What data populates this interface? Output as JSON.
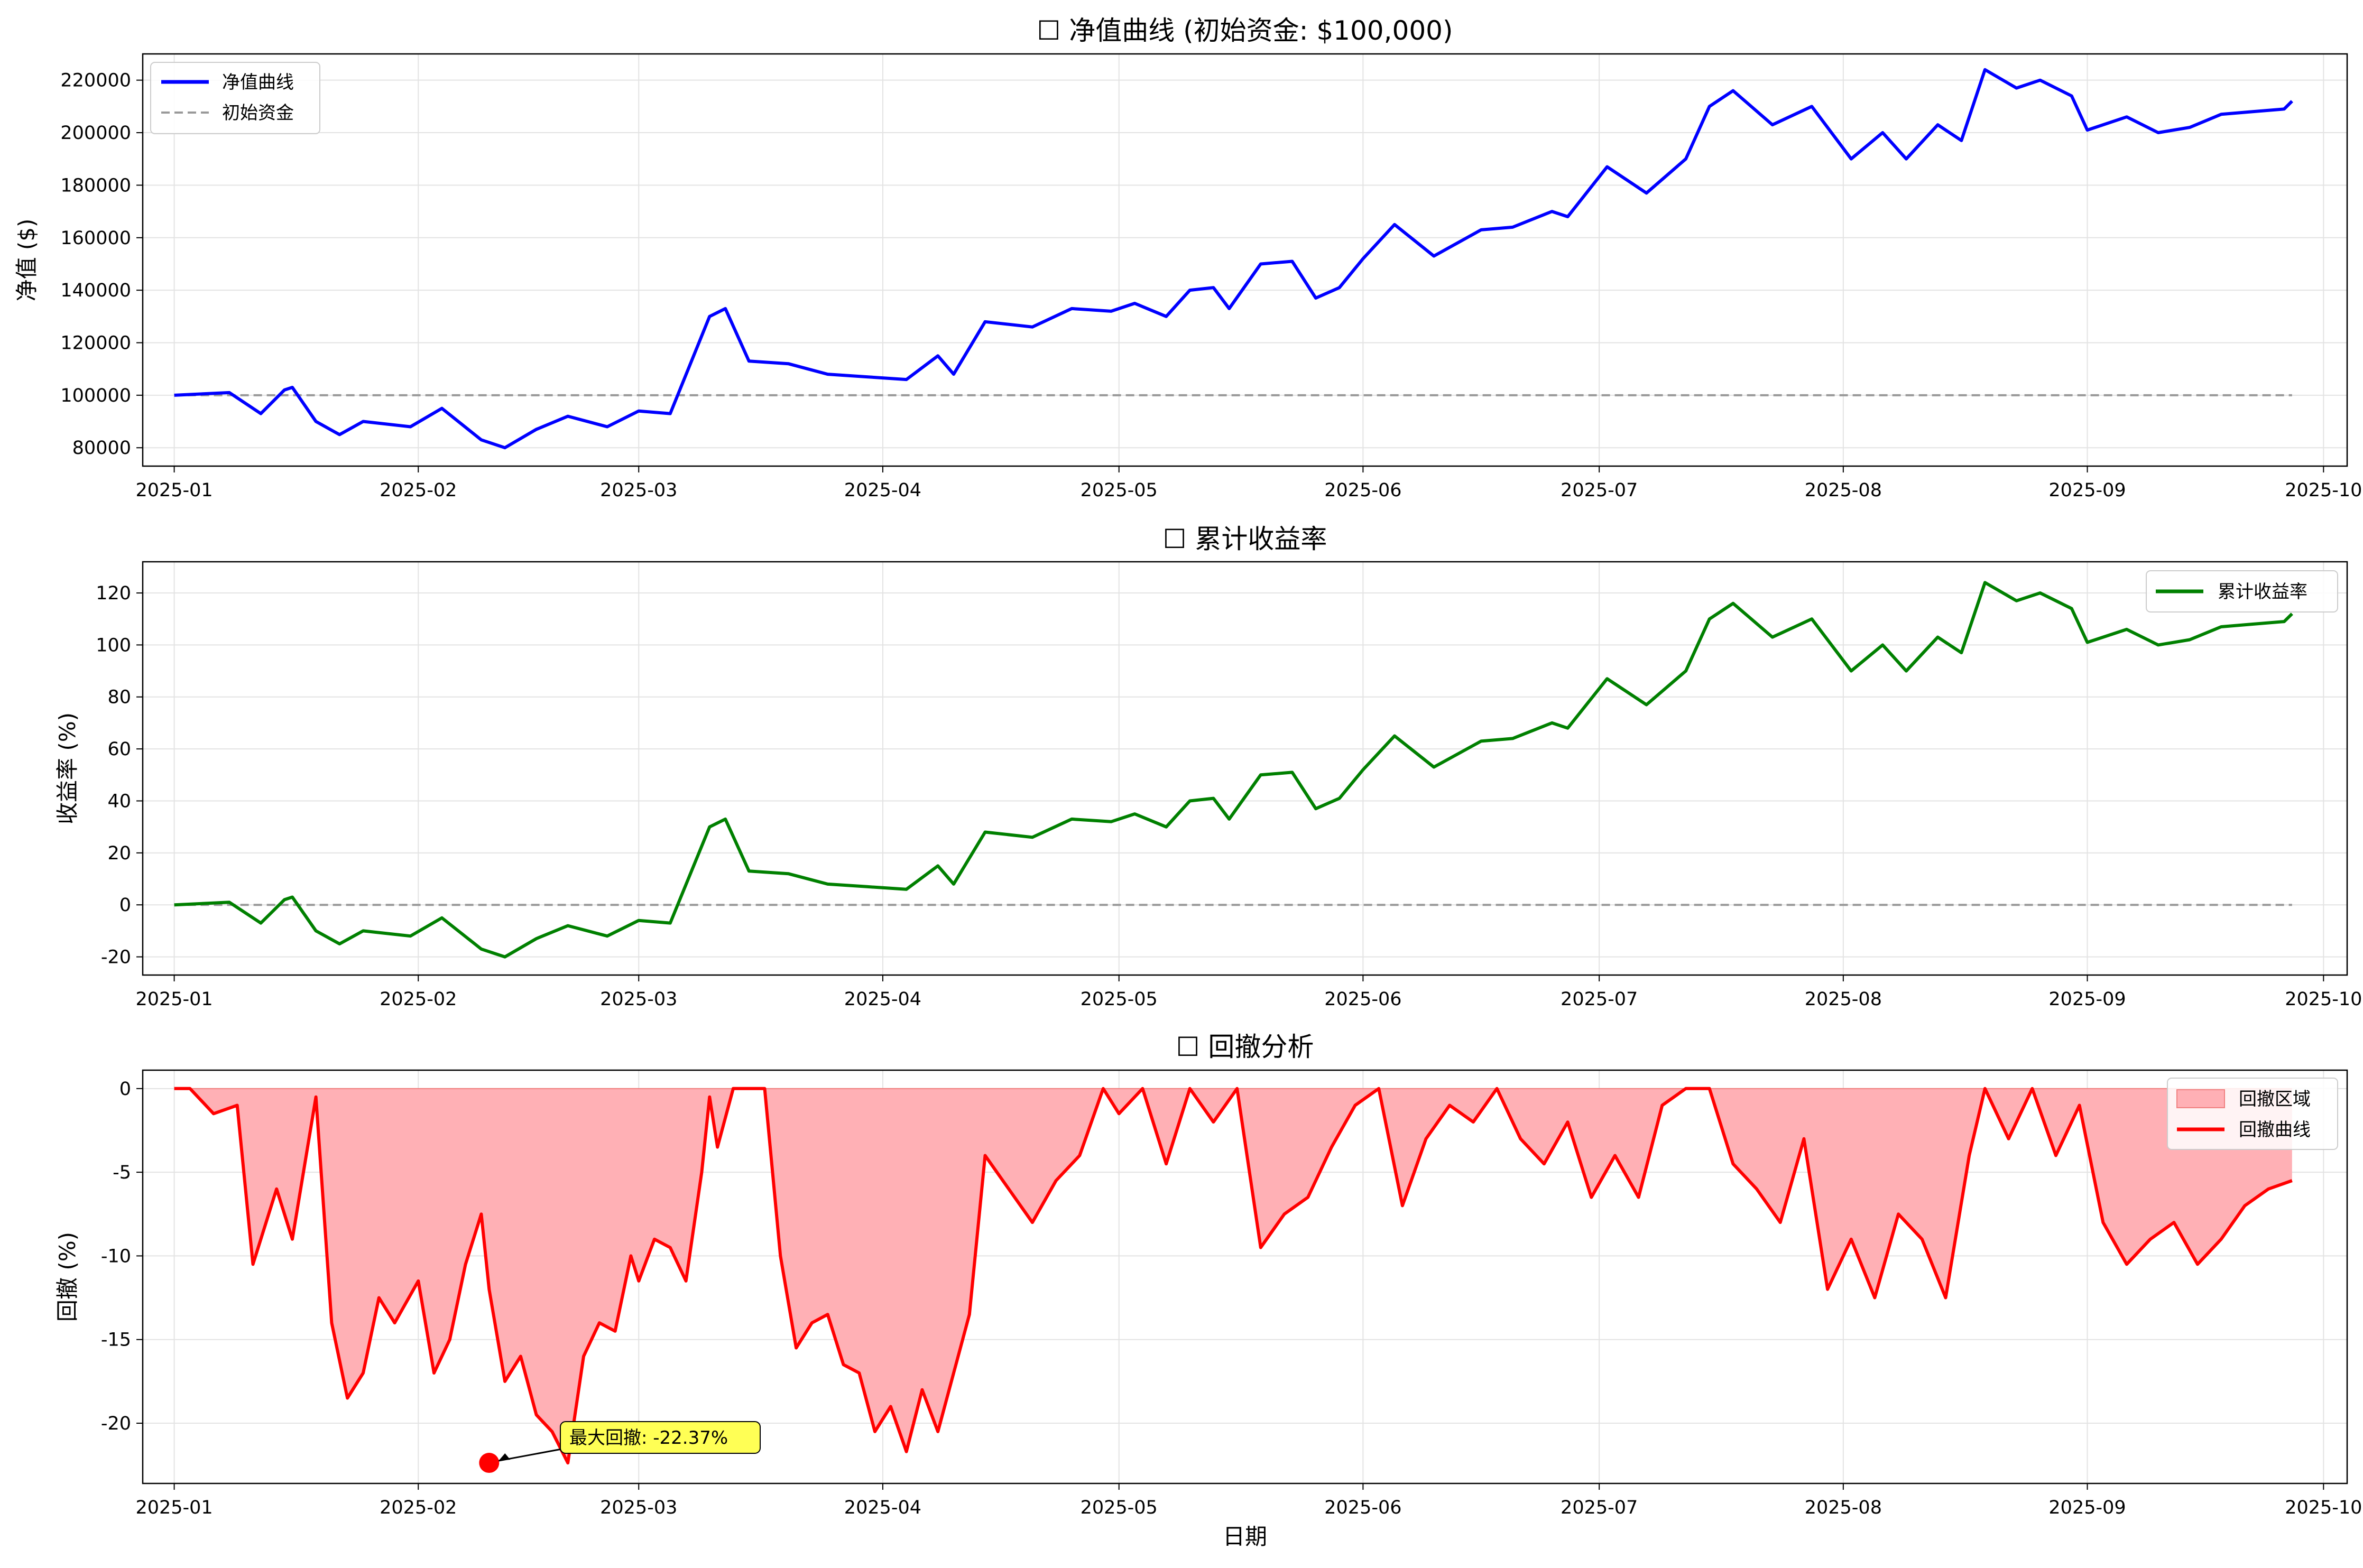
{
  "figure": {
    "xticks": [
      "2025-01",
      "2025-02",
      "2025-03",
      "2025-04",
      "2025-05",
      "2025-06",
      "2025-07",
      "2025-08",
      "2025-09",
      "2025-10"
    ],
    "xlabel": "日期"
  },
  "panels": {
    "equity": {
      "title": "☐ 净值曲线 (初始资金: $100,000)",
      "ylabel": "净值 ($)",
      "yticks": [
        "80000",
        "100000",
        "120000",
        "140000",
        "160000",
        "180000",
        "200000",
        "220000"
      ],
      "legend": [
        "净值曲线",
        "初始资金"
      ]
    },
    "returns": {
      "title": "☐ 累计收益率",
      "ylabel": "收益率 (%)",
      "yticks": [
        "-20",
        "0",
        "20",
        "40",
        "60",
        "80",
        "100",
        "120"
      ],
      "legend": [
        "累计收益率"
      ]
    },
    "drawdown": {
      "title": "☐ 回撤分析",
      "ylabel": "回撤 (%)",
      "yticks": [
        "-20",
        "-15",
        "-10",
        "-5",
        "0"
      ],
      "legend": [
        "回撤区域",
        "回撤曲线"
      ],
      "annotation": "最大回撤: -22.37%"
    }
  },
  "colors": {
    "equity": "#0000ff",
    "returns": "#008000",
    "drawdown": "#ff0000",
    "drawdown_fill": "#ffb0b5",
    "baseline": "#999999",
    "annotation_box": "#ffff55"
  },
  "chart_data": [
    {
      "type": "line",
      "title": "☐ 净值曲线 (初始资金: $100,000)",
      "xlabel": "",
      "ylabel": "净值 ($)",
      "xlim": [
        "2024-12-28",
        "2025-10-04"
      ],
      "ylim": [
        73000,
        230000
      ],
      "grid": true,
      "legend_position": "upper left",
      "series": [
        {
          "name": "净值曲线",
          "x": [
            "2025-01-01",
            "2025-01-08",
            "2025-01-12",
            "2025-01-15",
            "2025-01-16",
            "2025-01-19",
            "2025-01-22",
            "2025-01-25",
            "2025-01-31",
            "2025-02-04",
            "2025-02-09",
            "2025-02-12",
            "2025-02-16",
            "2025-02-20",
            "2025-02-25",
            "2025-03-01",
            "2025-03-05",
            "2025-03-10",
            "2025-03-12",
            "2025-03-15",
            "2025-03-20",
            "2025-03-25",
            "2025-03-30",
            "2025-04-04",
            "2025-04-08",
            "2025-04-10",
            "2025-04-14",
            "2025-04-20",
            "2025-04-25",
            "2025-04-30",
            "2025-05-03",
            "2025-05-07",
            "2025-05-10",
            "2025-05-13",
            "2025-05-15",
            "2025-05-19",
            "2025-05-23",
            "2025-05-26",
            "2025-05-29",
            "2025-06-01",
            "2025-06-05",
            "2025-06-10",
            "2025-06-16",
            "2025-06-20",
            "2025-06-25",
            "2025-06-27",
            "2025-07-02",
            "2025-07-07",
            "2025-07-12",
            "2025-07-15",
            "2025-07-18",
            "2025-07-23",
            "2025-07-28",
            "2025-08-02",
            "2025-08-06",
            "2025-08-09",
            "2025-08-13",
            "2025-08-16",
            "2025-08-19",
            "2025-08-23",
            "2025-08-26",
            "2025-08-30",
            "2025-09-01",
            "2025-09-06",
            "2025-09-10",
            "2025-09-14",
            "2025-09-18",
            "2025-09-22",
            "2025-09-26",
            "2025-09-27"
          ],
          "values": [
            100000,
            101000,
            93000,
            102000,
            103000,
            90000,
            85000,
            90000,
            88000,
            95000,
            83000,
            80000,
            87000,
            92000,
            88000,
            94000,
            93000,
            130000,
            133000,
            113000,
            112000,
            108000,
            107000,
            106000,
            115000,
            108000,
            128000,
            126000,
            133000,
            132000,
            135000,
            130000,
            140000,
            141000,
            133000,
            150000,
            151000,
            137000,
            141000,
            152000,
            165000,
            153000,
            163000,
            164000,
            170000,
            168000,
            187000,
            177000,
            190000,
            210000,
            216000,
            203000,
            210000,
            190000,
            200000,
            190000,
            203000,
            197000,
            224000,
            217000,
            220000,
            214000,
            201000,
            206000,
            200000,
            202000,
            207000,
            208000,
            209000,
            212000
          ]
        },
        {
          "name": "初始资金",
          "x": [
            "2025-01-01",
            "2025-09-27"
          ],
          "values": [
            100000,
            100000
          ]
        }
      ]
    },
    {
      "type": "line",
      "title": "☐ 累计收益率",
      "xlabel": "",
      "ylabel": "收益率 (%)",
      "xlim": [
        "2024-12-28",
        "2025-10-04"
      ],
      "ylim": [
        -27,
        132
      ],
      "grid": true,
      "legend_position": "upper right",
      "series": [
        {
          "name": "累计收益率",
          "x": [
            "2025-01-01",
            "2025-01-08",
            "2025-01-12",
            "2025-01-15",
            "2025-01-16",
            "2025-01-19",
            "2025-01-22",
            "2025-01-25",
            "2025-01-31",
            "2025-02-04",
            "2025-02-09",
            "2025-02-12",
            "2025-02-16",
            "2025-02-20",
            "2025-02-25",
            "2025-03-01",
            "2025-03-05",
            "2025-03-10",
            "2025-03-12",
            "2025-03-15",
            "2025-03-20",
            "2025-03-25",
            "2025-03-30",
            "2025-04-04",
            "2025-04-08",
            "2025-04-10",
            "2025-04-14",
            "2025-04-20",
            "2025-04-25",
            "2025-04-30",
            "2025-05-03",
            "2025-05-07",
            "2025-05-10",
            "2025-05-13",
            "2025-05-15",
            "2025-05-19",
            "2025-05-23",
            "2025-05-26",
            "2025-05-29",
            "2025-06-01",
            "2025-06-05",
            "2025-06-10",
            "2025-06-16",
            "2025-06-20",
            "2025-06-25",
            "2025-06-27",
            "2025-07-02",
            "2025-07-07",
            "2025-07-12",
            "2025-07-15",
            "2025-07-18",
            "2025-07-23",
            "2025-07-28",
            "2025-08-02",
            "2025-08-06",
            "2025-08-09",
            "2025-08-13",
            "2025-08-16",
            "2025-08-19",
            "2025-08-23",
            "2025-08-26",
            "2025-08-30",
            "2025-09-01",
            "2025-09-06",
            "2025-09-10",
            "2025-09-14",
            "2025-09-18",
            "2025-09-22",
            "2025-09-26",
            "2025-09-27"
          ],
          "values": [
            0,
            1,
            -7,
            2,
            3,
            -10,
            -15,
            -10,
            -12,
            -5,
            -17,
            -20,
            -13,
            -8,
            -12,
            -6,
            -7,
            30,
            33,
            13,
            12,
            8,
            7,
            6,
            15,
            8,
            28,
            26,
            33,
            32,
            35,
            30,
            40,
            41,
            33,
            50,
            51,
            37,
            41,
            52,
            65,
            53,
            63,
            64,
            70,
            68,
            87,
            77,
            90,
            110,
            116,
            103,
            110,
            90,
            100,
            90,
            103,
            97,
            124,
            117,
            120,
            114,
            101,
            106,
            100,
            102,
            107,
            108,
            109,
            112
          ]
        },
        {
          "name": "",
          "x": [
            "2025-01-01",
            "2025-09-27"
          ],
          "values": [
            0,
            0
          ]
        }
      ]
    },
    {
      "type": "area",
      "title": "☐ 回撤分析",
      "xlabel": "日期",
      "ylabel": "回撤 (%)",
      "xlim": [
        "2024-12-28",
        "2025-10-04"
      ],
      "ylim": [
        -23.6,
        1.1
      ],
      "grid": true,
      "legend_position": "upper right",
      "series": [
        {
          "name": "回撤曲线",
          "x": [
            "2025-01-01",
            "2025-01-03",
            "2025-01-06",
            "2025-01-09",
            "2025-01-11",
            "2025-01-14",
            "2025-01-16",
            "2025-01-19",
            "2025-01-21",
            "2025-01-23",
            "2025-01-25",
            "2025-01-27",
            "2025-01-29",
            "2025-02-01",
            "2025-02-03",
            "2025-02-05",
            "2025-02-07",
            "2025-02-09",
            "2025-02-10",
            "2025-02-12",
            "2025-02-14",
            "2025-02-16",
            "2025-02-18",
            "2025-02-20",
            "2025-02-22",
            "2025-02-24",
            "2025-02-26",
            "2025-02-28",
            "2025-03-01",
            "2025-03-03",
            "2025-03-05",
            "2025-03-07",
            "2025-03-09",
            "2025-03-10",
            "2025-03-11",
            "2025-03-13",
            "2025-03-15",
            "2025-03-17",
            "2025-03-19",
            "2025-03-21",
            "2025-03-23",
            "2025-03-25",
            "2025-03-27",
            "2025-03-29",
            "2025-03-31",
            "2025-04-02",
            "2025-04-04",
            "2025-04-06",
            "2025-04-08",
            "2025-04-10",
            "2025-04-12",
            "2025-04-14",
            "2025-04-17",
            "2025-04-20",
            "2025-04-23",
            "2025-04-26",
            "2025-04-29",
            "2025-05-01",
            "2025-05-04",
            "2025-05-07",
            "2025-05-10",
            "2025-05-13",
            "2025-05-16",
            "2025-05-19",
            "2025-05-22",
            "2025-05-25",
            "2025-05-28",
            "2025-05-31",
            "2025-06-03",
            "2025-06-06",
            "2025-06-09",
            "2025-06-12",
            "2025-06-15",
            "2025-06-18",
            "2025-06-21",
            "2025-06-24",
            "2025-06-27",
            "2025-06-30",
            "2025-07-03",
            "2025-07-06",
            "2025-07-09",
            "2025-07-12",
            "2025-07-15",
            "2025-07-18",
            "2025-07-21",
            "2025-07-24",
            "2025-07-27",
            "2025-07-30",
            "2025-08-02",
            "2025-08-05",
            "2025-08-08",
            "2025-08-11",
            "2025-08-14",
            "2025-08-17",
            "2025-08-19",
            "2025-08-22",
            "2025-08-25",
            "2025-08-28",
            "2025-08-31",
            "2025-09-03",
            "2025-09-06",
            "2025-09-09",
            "2025-09-12",
            "2025-09-15",
            "2025-09-18",
            "2025-09-21",
            "2025-09-24",
            "2025-09-27"
          ],
          "values": [
            0,
            0,
            -1.5,
            -1,
            -10.5,
            -6,
            -9,
            -0.5,
            -14,
            -18.5,
            -17,
            -12.5,
            -14,
            -11.5,
            -17,
            -15,
            -10.5,
            -7.5,
            -12,
            -17.5,
            -16,
            -19.5,
            -20.5,
            -22.37,
            -16,
            -14,
            -14.5,
            -10,
            -11.5,
            -9,
            -9.5,
            -11.5,
            -5,
            -0.5,
            -3.5,
            0,
            0,
            0,
            -10,
            -15.5,
            -14,
            -13.5,
            -16.5,
            -17,
            -20.5,
            -19,
            -21.7,
            -18,
            -20.5,
            -17,
            -13.5,
            -4,
            -6,
            -8,
            -5.5,
            -4,
            0,
            -1.5,
            0,
            -4.5,
            0,
            -2,
            0,
            -9.5,
            -7.5,
            -6.5,
            -3.5,
            -1,
            0,
            -7,
            -3,
            -1,
            -2,
            0,
            -3,
            -4.5,
            -2,
            -6.5,
            -4,
            -6.5,
            -1,
            0,
            0,
            -4.5,
            -6,
            -8,
            -3,
            -12,
            -9,
            -12.5,
            -7.5,
            -9,
            -12.5,
            -4,
            0,
            -3,
            0,
            -4,
            -1,
            -8,
            -10.5,
            -9,
            -8,
            -10.5,
            -9,
            -7,
            -6,
            -5.5
          ]
        }
      ],
      "annotations": [
        {
          "text": "最大回撤: -22.37%",
          "x": "2025-02-10",
          "y": -22.37
        }
      ]
    }
  ]
}
